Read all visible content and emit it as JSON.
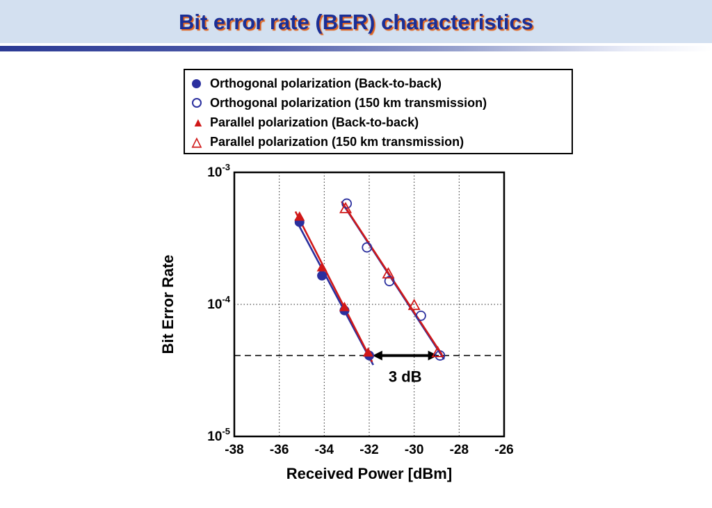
{
  "slide": {
    "title": "Bit error rate (BER) characteristics"
  },
  "colors": {
    "band_bg": "#d3e0f0",
    "bar_dark": "#2b3a94",
    "title_text": "#1a2f96",
    "title_shadow": "#e2641c",
    "blue": "#2a2f9e",
    "red": "#d01818"
  },
  "legend": {
    "items": [
      {
        "marker": "filled-circle",
        "color": "#2a2f9e",
        "label": "Orthogonal polarization (Back-to-back)"
      },
      {
        "marker": "open-circle",
        "color": "#2a2f9e",
        "label": "Orthogonal polarization (150 km transmission)"
      },
      {
        "marker": "filled-triangle",
        "color": "#d01818",
        "label": "Parallel polarization (Back-to-back)"
      },
      {
        "marker": "open-triangle",
        "color": "#d01818",
        "label": "Parallel polarization (150 km transmission)"
      }
    ]
  },
  "chart_data": {
    "type": "scatter",
    "title": "",
    "xlabel": "Received Power [dBm]",
    "ylabel": "Bit Error Rate",
    "xlim": [
      -38,
      -26
    ],
    "x_ticks": [
      -38,
      -36,
      -34,
      -32,
      -30,
      -28,
      -26
    ],
    "y_scale": "log10",
    "ylim_exponents": [
      -5,
      -3
    ],
    "y_ticks": [
      {
        "mantissa": "10",
        "exponent": "-3",
        "value": 0.001
      },
      {
        "mantissa": "10",
        "exponent": "-4",
        "value": 0.0001
      },
      {
        "mantissa": "10",
        "exponent": "-5",
        "value": 1e-05
      }
    ],
    "grid": {
      "vertical_dotted_at": [
        -36,
        -34,
        -32,
        -30,
        -28
      ],
      "horizontal_dotted_at": [
        0.0001
      ],
      "horizontal_dashed_at": [
        4.1e-05
      ]
    },
    "series": [
      {
        "name": "Orthogonal polarization (Back-to-back)",
        "marker": "filled-circle",
        "color": "#2a2f9e",
        "points": [
          [
            -35.1,
            0.00042
          ],
          [
            -34.1,
            0.000165
          ],
          [
            -33.1,
            9e-05
          ],
          [
            -32.0,
            4.1e-05
          ]
        ]
      },
      {
        "name": "Parallel polarization (Back-to-back)",
        "marker": "filled-triangle",
        "color": "#d01818",
        "points": [
          [
            -35.1,
            0.00046
          ],
          [
            -34.1,
            0.00019
          ],
          [
            -33.1,
            9.5e-05
          ],
          [
            -32.05,
            4.3e-05
          ]
        ]
      },
      {
        "name": "Orthogonal polarization (150 km transmission)",
        "marker": "open-circle",
        "color": "#2a2f9e",
        "points": [
          [
            -33.0,
            0.00058
          ],
          [
            -32.1,
            0.00027
          ],
          [
            -31.1,
            0.00015
          ],
          [
            -29.7,
            8.2e-05
          ],
          [
            -28.85,
            4.1e-05
          ]
        ]
      },
      {
        "name": "Parallel polarization (150 km transmission)",
        "marker": "open-triangle",
        "color": "#d01818",
        "points": [
          [
            -33.05,
            0.00053
          ],
          [
            -31.15,
            0.00017
          ],
          [
            -30.0,
            9.8e-05
          ],
          [
            -28.95,
            4.3e-05
          ]
        ]
      }
    ],
    "annotation": {
      "type": "double-arrow",
      "y": 4.1e-05,
      "x1": -31.85,
      "x2": -28.95,
      "label": "3 dB"
    }
  }
}
